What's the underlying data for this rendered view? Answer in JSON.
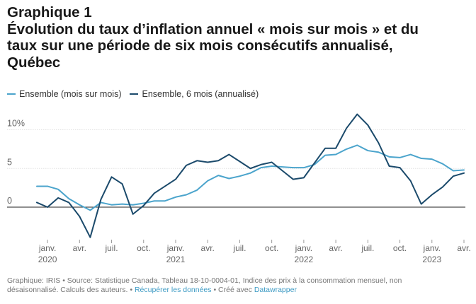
{
  "heading": {
    "line1": "Graphique 1",
    "line2": "Évolution du taux d’inflation annuel « mois sur mois » et du",
    "line3": "taux sur une période de six mois consécutifs annualisé,",
    "line4": "Québec"
  },
  "colors": {
    "monthly": "#4ba4cc",
    "six_month": "#1b4a6b"
  },
  "footer": {
    "line1": "Graphique: IRIS • Source: Statistique Canada, Tableau 18-10-0004-01, Indice des prix à la consommation mensuel, non",
    "line2_text": "désaisonnalisé. Calculs des auteurs. • ",
    "data_link": "Récupérer les données",
    "sep": " • Créé avec ",
    "tool_link": "Datawrapper"
  },
  "chart_data": {
    "type": "line",
    "x": [
      "2019-12",
      "2020-01",
      "2020-02",
      "2020-03",
      "2020-04",
      "2020-05",
      "2020-06",
      "2020-07",
      "2020-08",
      "2020-09",
      "2020-10",
      "2020-11",
      "2020-12",
      "2021-01",
      "2021-02",
      "2021-03",
      "2021-04",
      "2021-05",
      "2021-06",
      "2021-07",
      "2021-08",
      "2021-09",
      "2021-10",
      "2021-11",
      "2021-12",
      "2022-01",
      "2022-02",
      "2022-03",
      "2022-04",
      "2022-05",
      "2022-06",
      "2022-07",
      "2022-08",
      "2022-09",
      "2022-10",
      "2022-11",
      "2022-12",
      "2023-01",
      "2023-02",
      "2023-03",
      "2023-04"
    ],
    "series": [
      {
        "name": "Ensemble (mois sur mois)",
        "values": [
          2.7,
          2.7,
          2.3,
          1.1,
          0.3,
          -0.4,
          0.6,
          0.3,
          0.4,
          0.3,
          0.5,
          0.8,
          0.8,
          1.3,
          1.6,
          2.2,
          3.4,
          4.1,
          3.7,
          4.0,
          4.4,
          5.1,
          5.3,
          5.2,
          5.1,
          5.1,
          5.5,
          6.7,
          6.8,
          7.5,
          8.0,
          7.3,
          7.1,
          6.5,
          6.4,
          6.8,
          6.3,
          6.2,
          5.6,
          4.7,
          4.8
        ]
      },
      {
        "name": "Ensemble, 6 mois (annualisé)",
        "values": [
          0.6,
          0.0,
          1.2,
          0.6,
          -1.2,
          -3.9,
          1.0,
          3.9,
          3.0,
          -0.9,
          0.2,
          1.8,
          2.7,
          3.6,
          5.4,
          6.0,
          5.8,
          6.0,
          6.8,
          5.9,
          5.0,
          5.5,
          5.8,
          4.7,
          3.6,
          3.8,
          5.7,
          7.6,
          7.6,
          10.2,
          12.0,
          10.6,
          8.3,
          5.3,
          5.1,
          3.4,
          0.4,
          1.6,
          2.6,
          4.0,
          4.4
        ]
      }
    ],
    "y_ticks": [
      "0",
      "5",
      "10%"
    ],
    "y_tick_values": [
      0,
      5,
      10
    ],
    "ylim": [
      -5,
      12.5
    ],
    "x_ticks": [
      {
        "month": "2020-01",
        "label": "janv.",
        "year": "2020"
      },
      {
        "month": "2020-04",
        "label": "avr.",
        "year": ""
      },
      {
        "month": "2020-07",
        "label": "juil.",
        "year": ""
      },
      {
        "month": "2020-10",
        "label": "oct.",
        "year": ""
      },
      {
        "month": "2021-01",
        "label": "janv.",
        "year": "2021"
      },
      {
        "month": "2021-04",
        "label": "avr.",
        "year": ""
      },
      {
        "month": "2021-07",
        "label": "juil.",
        "year": ""
      },
      {
        "month": "2021-10",
        "label": "oct.",
        "year": ""
      },
      {
        "month": "2022-01",
        "label": "janv.",
        "year": "2022"
      },
      {
        "month": "2022-04",
        "label": "avr.",
        "year": ""
      },
      {
        "month": "2022-07",
        "label": "juil.",
        "year": ""
      },
      {
        "month": "2022-10",
        "label": "oct.",
        "year": ""
      },
      {
        "month": "2023-01",
        "label": "janv.",
        "year": "2023"
      },
      {
        "month": "2023-04",
        "label": "avr.",
        "year": ""
      }
    ],
    "grid": true,
    "legend_position": "top-left"
  }
}
